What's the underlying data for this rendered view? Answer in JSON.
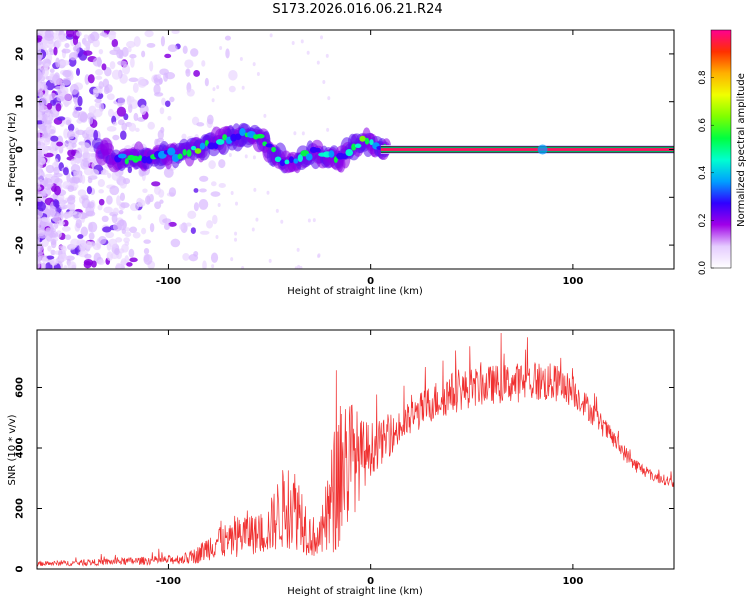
{
  "page": {
    "title": "S173.2026.016.06.21.R24"
  },
  "chart_data": [
    {
      "type": "heatmap",
      "name": "spectrogram",
      "xlabel": "Height of straight line (km)",
      "ylabel": "Frequency (Hz)",
      "xlim": [
        -165,
        150
      ],
      "ylim": [
        -25,
        25
      ],
      "xticks": [
        -100,
        0,
        100
      ],
      "xtick_labels": [
        "-100",
        "0",
        "100"
      ],
      "yticks": [
        -20,
        -10,
        0,
        10,
        20
      ],
      "ytick_labels": [
        "-20",
        "-10",
        "0",
        "10",
        "20"
      ],
      "colorbar": {
        "label": "Normalized spectral amplitude",
        "range": [
          0,
          1
        ],
        "ticks": [
          0.0,
          0.2,
          0.4,
          0.6,
          0.8
        ],
        "tick_labels": [
          "0.0",
          "0.2",
          "0.4",
          "0.6",
          "0.8"
        ],
        "colors": [
          "#ffffff",
          "#e5ccff",
          "#a000e8",
          "#3000ff",
          "#00a0ff",
          "#00ffd0",
          "#00ff40",
          "#80ff00",
          "#f0ff00",
          "#ffb000",
          "#ff3000",
          "#ff0090"
        ]
      },
      "tone_path": [
        {
          "x": -130,
          "y": -2.0
        },
        {
          "x": -110,
          "y": -1.5
        },
        {
          "x": -95,
          "y": -1.0
        },
        {
          "x": -85,
          "y": 0.5
        },
        {
          "x": -75,
          "y": 1.5
        },
        {
          "x": -62,
          "y": 3.5
        },
        {
          "x": -55,
          "y": 2.5
        },
        {
          "x": -48,
          "y": -0.5
        },
        {
          "x": -42,
          "y": -3.0
        },
        {
          "x": -35,
          "y": -2.0
        },
        {
          "x": -28,
          "y": -0.5
        },
        {
          "x": -22,
          "y": -1.5
        },
        {
          "x": -15,
          "y": -2.0
        },
        {
          "x": -8,
          "y": 0.5
        },
        {
          "x": -4,
          "y": 1.8
        },
        {
          "x": 0,
          "y": 1.2
        },
        {
          "x": 5,
          "y": 0.2
        },
        {
          "x": 15,
          "y": 0.0
        },
        {
          "x": 150,
          "y": 0.0
        }
      ],
      "steady_tone": {
        "x_start": 5,
        "x_end": 150,
        "y": 0.0
      }
    },
    {
      "type": "line",
      "name": "snr",
      "xlabel": "Height of straight line (km)",
      "ylabel": "SNR (10 * v/v)",
      "xlim": [
        -165,
        150
      ],
      "ylim": [
        0,
        790
      ],
      "xticks": [
        -100,
        0,
        100
      ],
      "xtick_labels": [
        "-100",
        "0",
        "100"
      ],
      "yticks": [
        0,
        200,
        400,
        600
      ],
      "ytick_labels": [
        "0",
        "200",
        "400",
        "600"
      ],
      "color": "#f03030",
      "envelope": {
        "x": [
          -165,
          -140,
          -120,
          -100,
          -90,
          -85,
          -80,
          -75,
          -70,
          -65,
          -60,
          -55,
          -50,
          -45,
          -40,
          -35,
          -30,
          -25,
          -20,
          -15,
          -10,
          -5,
          0,
          10,
          20,
          30,
          40,
          50,
          60,
          70,
          80,
          90,
          95,
          100,
          105,
          110,
          115,
          120,
          125,
          130,
          135,
          140,
          145,
          150
        ],
        "base": [
          15,
          18,
          22,
          25,
          30,
          40,
          60,
          80,
          70,
          90,
          100,
          90,
          110,
          150,
          170,
          150,
          90,
          80,
          150,
          250,
          300,
          330,
          370,
          420,
          480,
          530,
          560,
          580,
          590,
          595,
          600,
          595,
          590,
          570,
          540,
          500,
          460,
          420,
          380,
          340,
          320,
          300,
          290,
          280
        ],
        "amp": [
          15,
          20,
          25,
          30,
          40,
          60,
          90,
          130,
          110,
          140,
          150,
          120,
          170,
          260,
          300,
          260,
          150,
          120,
          350,
          550,
          440,
          260,
          180,
          120,
          120,
          130,
          140,
          130,
          130,
          130,
          140,
          130,
          120,
          100,
          90,
          80,
          70,
          60,
          55,
          50,
          40,
          35,
          35,
          35
        ]
      }
    }
  ]
}
